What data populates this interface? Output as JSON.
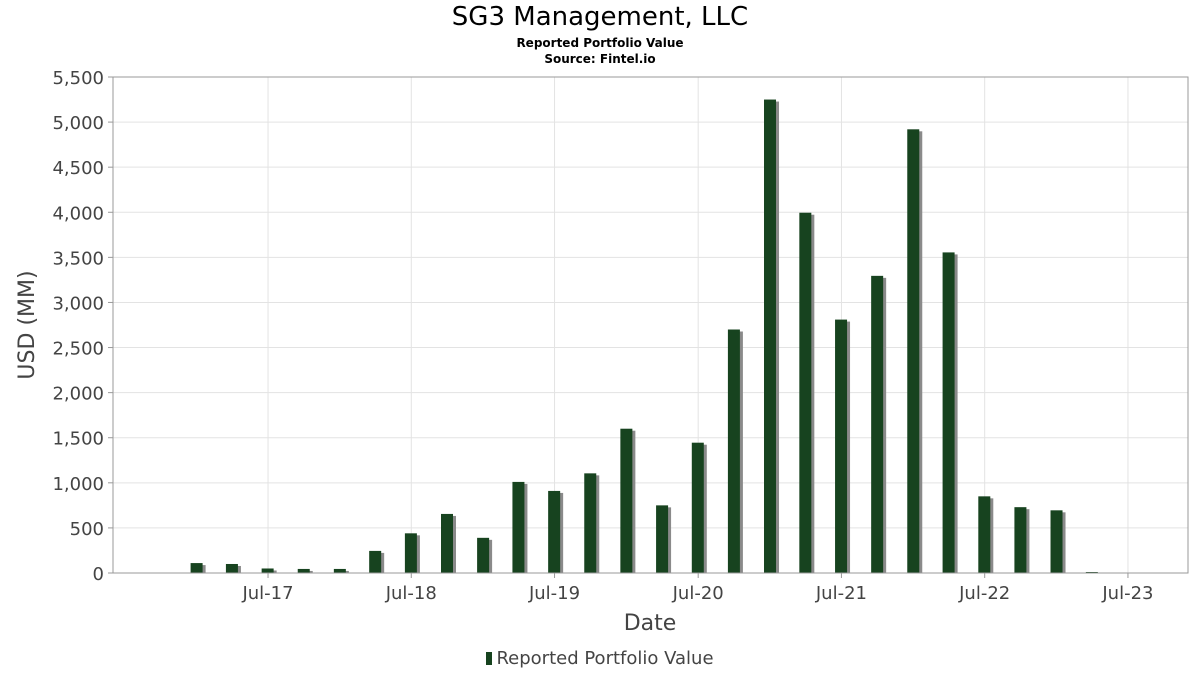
{
  "chart_data": {
    "type": "bar",
    "title": "SG3 Management, LLC",
    "subtitles": [
      "Reported Portfolio Value",
      "Source: Fintel.io"
    ],
    "xlabel": "Date",
    "ylabel": "USD (MM)",
    "ylim": [
      0,
      5500
    ],
    "yticks": [
      0,
      500,
      1000,
      1500,
      2000,
      2500,
      3000,
      3500,
      4000,
      4500,
      5000,
      5500
    ],
    "ytick_labels": [
      "0",
      "500",
      "1,000",
      "1,500",
      "2,000",
      "2,500",
      "3,000",
      "3,500",
      "4,000",
      "4,500",
      "5,000",
      "5,500"
    ],
    "xtick_labels": [
      "Jul-17",
      "Jul-18",
      "Jul-19",
      "Jul-20",
      "Jul-21",
      "Jul-22",
      "Jul-23"
    ],
    "xtick_dates": [
      "2017-07-01",
      "2018-07-01",
      "2019-07-01",
      "2020-07-01",
      "2021-07-01",
      "2022-07-01",
      "2023-07-01"
    ],
    "xlim": [
      "2016-06-01",
      "2023-12-01"
    ],
    "grid": true,
    "legend": "bottom",
    "series": [
      {
        "name": "Reported Portfolio Value",
        "color": "#17431f",
        "shadow_color": "#8a8a8a",
        "points": [
          {
            "date": "2016-12-31",
            "value": 110
          },
          {
            "date": "2017-03-31",
            "value": 100
          },
          {
            "date": "2017-06-30",
            "value": 50
          },
          {
            "date": "2017-09-30",
            "value": 45
          },
          {
            "date": "2017-12-31",
            "value": 45
          },
          {
            "date": "2018-03-31",
            "value": 245
          },
          {
            "date": "2018-06-30",
            "value": 440
          },
          {
            "date": "2018-09-30",
            "value": 655
          },
          {
            "date": "2018-12-31",
            "value": 390
          },
          {
            "date": "2019-03-31",
            "value": 1010
          },
          {
            "date": "2019-06-30",
            "value": 910
          },
          {
            "date": "2019-09-30",
            "value": 1105
          },
          {
            "date": "2019-12-31",
            "value": 1600
          },
          {
            "date": "2020-03-31",
            "value": 750
          },
          {
            "date": "2020-06-30",
            "value": 1445
          },
          {
            "date": "2020-09-30",
            "value": 2700
          },
          {
            "date": "2020-12-31",
            "value": 5250
          },
          {
            "date": "2021-03-31",
            "value": 3995
          },
          {
            "date": "2021-06-30",
            "value": 2810
          },
          {
            "date": "2021-09-30",
            "value": 3295
          },
          {
            "date": "2021-12-31",
            "value": 4920
          },
          {
            "date": "2022-03-31",
            "value": 3555
          },
          {
            "date": "2022-06-30",
            "value": 850
          },
          {
            "date": "2022-09-30",
            "value": 730
          },
          {
            "date": "2022-12-31",
            "value": 695
          },
          {
            "date": "2023-03-31",
            "value": 5
          }
        ]
      }
    ]
  }
}
